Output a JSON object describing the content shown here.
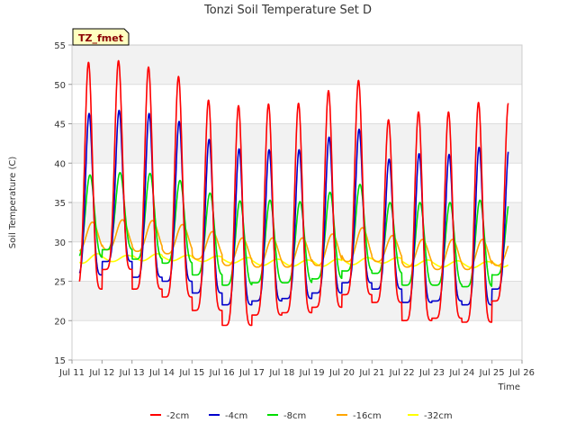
{
  "chart_data": {
    "type": "line",
    "title": "Tonzi Soil Temperature Set D",
    "xlabel": "Time",
    "ylabel": "Soil Temperature (C)",
    "badge": "TZ_fmet",
    "xlim": [
      11,
      26
    ],
    "ylim": [
      15,
      55
    ],
    "x_ticks": [
      {
        "value": 11,
        "label": "Jul 11"
      },
      {
        "value": 12,
        "label": "Jul 12"
      },
      {
        "value": 13,
        "label": "Jul 13"
      },
      {
        "value": 14,
        "label": "Jul 14"
      },
      {
        "value": 15,
        "label": "Jul 15"
      },
      {
        "value": 16,
        "label": "Jul 16"
      },
      {
        "value": 17,
        "label": "Jul 17"
      },
      {
        "value": 18,
        "label": "Jul 18"
      },
      {
        "value": 19,
        "label": "Jul 19"
      },
      {
        "value": 20,
        "label": "Jul 20"
      },
      {
        "value": 21,
        "label": "Jul 21"
      },
      {
        "value": 22,
        "label": "Jul 22"
      },
      {
        "value": 23,
        "label": "Jul 23"
      },
      {
        "value": 24,
        "label": "Jul 24"
      },
      {
        "value": 25,
        "label": "Jul 25"
      },
      {
        "value": 26,
        "label": "Jul 26"
      }
    ],
    "y_ticks": [
      15,
      20,
      25,
      30,
      35,
      40,
      45,
      50,
      55
    ],
    "grid": true,
    "legend_position": "bottom",
    "daily_extremes": {
      "days": [
        11,
        12,
        13,
        14,
        15,
        16,
        17,
        18,
        19,
        20,
        21,
        22,
        23,
        24,
        25
      ],
      "series": [
        {
          "name": "-2cm",
          "color": "#ff0000",
          "max": [
            52.8,
            53.0,
            52.2,
            51.0,
            48.0,
            47.3,
            47.5,
            47.6,
            49.2,
            50.5,
            45.5,
            46.5,
            46.5,
            47.7,
            47.7
          ],
          "min": [
            24.0,
            26.5,
            24.0,
            23.0,
            21.3,
            19.4,
            20.7,
            21.0,
            21.7,
            23.3,
            22.3,
            20.0,
            20.3,
            19.8,
            22.5
          ]
        },
        {
          "name": "-4cm",
          "color": "#0000cc",
          "max": [
            46.3,
            46.7,
            46.3,
            45.3,
            43.0,
            41.8,
            41.7,
            41.7,
            43.3,
            44.3,
            40.5,
            41.2,
            41.1,
            42.0,
            42.0
          ],
          "min": [
            25.8,
            27.5,
            25.5,
            25.0,
            23.5,
            22.0,
            22.5,
            22.8,
            23.5,
            24.8,
            24.0,
            22.3,
            22.5,
            22.0,
            24.0
          ]
        },
        {
          "name": "-8cm",
          "color": "#00dd00",
          "max": [
            38.5,
            38.8,
            38.7,
            37.8,
            36.2,
            35.2,
            35.3,
            35.1,
            36.3,
            37.3,
            35.0,
            35.0,
            35.0,
            35.3,
            35.3
          ],
          "min": [
            28.0,
            29.0,
            27.8,
            27.3,
            25.8,
            24.5,
            24.8,
            24.8,
            25.3,
            26.3,
            26.0,
            24.5,
            24.5,
            24.3,
            25.8
          ]
        },
        {
          "name": "-16cm",
          "color": "#ffa500",
          "max": [
            32.5,
            32.8,
            32.7,
            32.2,
            31.3,
            30.5,
            30.5,
            30.5,
            31.0,
            31.8,
            30.8,
            30.3,
            30.3,
            30.3,
            30.3
          ],
          "min": [
            28.8,
            29.0,
            28.8,
            28.5,
            27.8,
            27.0,
            26.8,
            26.8,
            27.0,
            27.5,
            27.5,
            26.8,
            26.5,
            26.5,
            27.0
          ]
        },
        {
          "name": "-32cm",
          "color": "#ffff00",
          "max": [
            28.5,
            28.3,
            28.5,
            28.3,
            28.2,
            28.0,
            27.8,
            27.7,
            27.8,
            28.0,
            28.0,
            27.7,
            27.6,
            27.5,
            27.6
          ],
          "min": [
            27.3,
            27.5,
            27.6,
            27.6,
            27.5,
            27.3,
            27.0,
            26.9,
            26.9,
            27.1,
            27.3,
            26.9,
            26.8,
            26.7,
            26.8
          ]
        }
      ]
    }
  }
}
